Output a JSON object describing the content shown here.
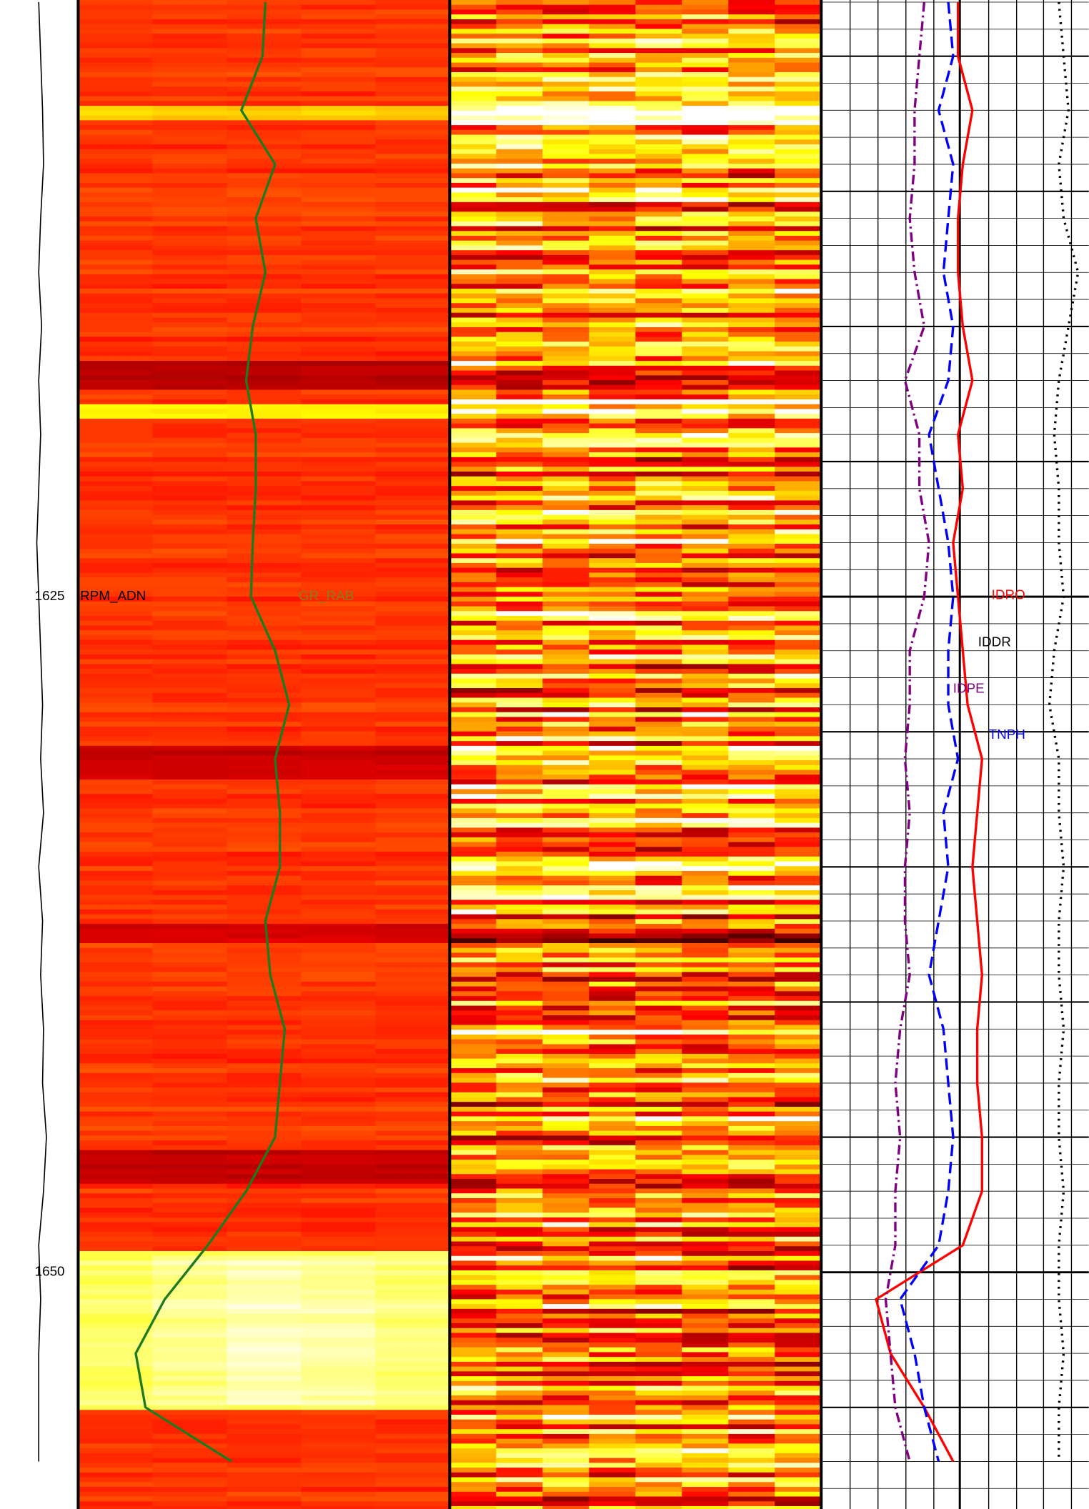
{
  "chart_data": {
    "type": "log",
    "ylim": [
      1602.92,
      1658.76
    ],
    "yticks": [
      1625,
      1650
    ],
    "depth": [
      1603,
      1605,
      1607,
      1609,
      1611,
      1613,
      1615,
      1617,
      1619,
      1621,
      1623,
      1625,
      1627,
      1629,
      1631,
      1633,
      1635,
      1637,
      1639,
      1641,
      1643,
      1645,
      1647,
      1649,
      1651,
      1653,
      1655,
      1657
    ],
    "series": [
      {
        "name": "RPM_ADN",
        "color": "#000000",
        "track": "depth",
        "xlim": [
          0,
          100
        ],
        "dash": "none",
        "values": [
          50,
          52.5,
          55,
          56.3,
          52.5,
          50,
          53.8,
          50,
          52.5,
          50,
          47.5,
          50,
          52.5,
          55,
          52.5,
          56.3,
          50,
          55,
          52.5,
          56.3,
          55,
          60,
          56.3,
          50,
          52.5,
          50,
          50,
          50
        ]
      },
      {
        "name": "GR_RAB",
        "color": "#1e7a1e",
        "track": "gr",
        "xlim": [
          0,
          100
        ],
        "dash": "none",
        "values": [
          50.4,
          49.6,
          43.9,
          53.0,
          47.8,
          50.4,
          47.0,
          45.2,
          47.8,
          47.8,
          47.0,
          46.5,
          53.0,
          56.8,
          53.0,
          54.3,
          54.3,
          50.4,
          51.7,
          55.6,
          54.3,
          53.0,
          45.2,
          34.9,
          23.3,
          15.5,
          18.1,
          41.3
        ]
      },
      {
        "name": "IDRO",
        "color": "#ff0000",
        "track": "res",
        "xlim": [
          0,
          100
        ],
        "dash": "none",
        "values": [
          51.1,
          51.1,
          56.5,
          52.9,
          51.1,
          51.1,
          52.9,
          56.5,
          51.1,
          52.9,
          49.3,
          51.1,
          52.9,
          54.7,
          60.1,
          58.3,
          56.5,
          58.3,
          60.1,
          58.3,
          58.3,
          60.1,
          60.1,
          52.9,
          20.5,
          25.9,
          38.5,
          49.3
        ]
      },
      {
        "name": "IDDR",
        "color": "#000000",
        "track": "res",
        "xlim": [
          0,
          100
        ],
        "dash": "2 5",
        "values": [
          88.8,
          90.6,
          92.4,
          88.8,
          90.6,
          96.0,
          92.4,
          88.8,
          87.1,
          88.8,
          88.8,
          90.6,
          87.1,
          85.3,
          88.8,
          88.8,
          90.6,
          88.8,
          88.8,
          90.6,
          88.8,
          88.8,
          90.6,
          88.8,
          88.8,
          90.6,
          88.8,
          88.8
        ]
      },
      {
        "name": "IDPE",
        "color": "#800080",
        "track": "res",
        "xlim": [
          0,
          100
        ],
        "dash": "10 4 2 4",
        "values": [
          38.5,
          36.7,
          34.9,
          34.9,
          33.1,
          34.9,
          38.5,
          31.3,
          36.7,
          36.7,
          40.3,
          38.5,
          33.1,
          33.1,
          31.3,
          33.1,
          31.3,
          31.3,
          33.1,
          29.5,
          27.7,
          29.5,
          27.7,
          27.7,
          24.1,
          25.9,
          27.7,
          33.1
        ]
      },
      {
        "name": "TNPH",
        "color": "#0000ff",
        "track": "res",
        "xlim": [
          0,
          100
        ],
        "dash": "12 6",
        "values": [
          47.5,
          49.3,
          43.9,
          49.3,
          47.5,
          45.7,
          49.3,
          47.5,
          40.3,
          43.9,
          47.5,
          49.3,
          47.5,
          47.5,
          51.1,
          45.7,
          47.5,
          43.9,
          40.3,
          45.7,
          47.5,
          49.3,
          47.5,
          43.9,
          29.5,
          34.9,
          38.5,
          43.9
        ]
      }
    ]
  }
}
